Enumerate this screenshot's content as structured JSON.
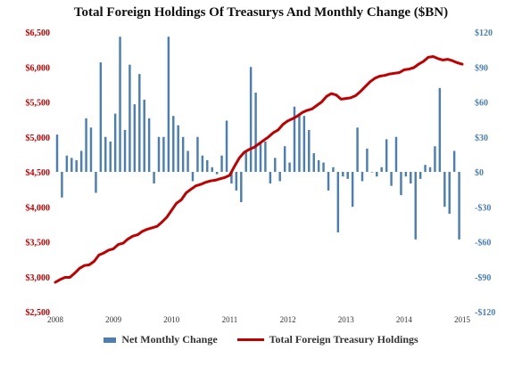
{
  "chart_data": {
    "type": "bar+line",
    "title": "Total Foreign Holdings Of Treasurys And Monthly Change ($BN)",
    "x_range": [
      2008.0,
      2015.0
    ],
    "x_tick_labels": [
      "2008",
      "2009",
      "2010",
      "2011",
      "2012",
      "2013",
      "2014",
      "2015"
    ],
    "y_left": {
      "range": [
        2500,
        6500
      ],
      "ticks": [
        2500,
        3000,
        3500,
        4000,
        4500,
        5000,
        5500,
        6000,
        6500
      ],
      "tick_labels": [
        "$2,500",
        "$3,000",
        "$3,500",
        "$4,000",
        "$4,500",
        "$5,000",
        "$5,500",
        "$6,000",
        "$6,500"
      ],
      "color": "#c00000"
    },
    "y_right": {
      "range": [
        -120,
        120
      ],
      "ticks": [
        -120,
        -90,
        -60,
        -30,
        0,
        30,
        60,
        90,
        120
      ],
      "tick_labels": [
        "-$120",
        "-$90",
        "-$60",
        "-$30",
        "$0",
        "$30",
        "$60",
        "$90",
        "$120"
      ],
      "color": "#4a7eb5"
    },
    "grid": false,
    "legend_position": "bottom",
    "series": [
      {
        "name": "Net Monthly Change",
        "type": "bar",
        "axis": "right",
        "color": "#4a7eb5",
        "x": [
          2008.0,
          2008.083,
          2008.167,
          2008.25,
          2008.333,
          2008.417,
          2008.5,
          2008.583,
          2008.667,
          2008.75,
          2008.833,
          2008.917,
          2009.0,
          2009.083,
          2009.167,
          2009.25,
          2009.333,
          2009.417,
          2009.5,
          2009.583,
          2009.667,
          2009.75,
          2009.833,
          2009.917,
          2010.0,
          2010.083,
          2010.167,
          2010.25,
          2010.333,
          2010.417,
          2010.5,
          2010.583,
          2010.667,
          2010.75,
          2010.833,
          2010.917,
          2011.0,
          2011.083,
          2011.167,
          2011.25,
          2011.333,
          2011.417,
          2011.5,
          2011.583,
          2011.667,
          2011.75,
          2011.833,
          2011.917,
          2012.0,
          2012.083,
          2012.167,
          2012.25,
          2012.333,
          2012.417,
          2012.5,
          2012.583,
          2012.667,
          2012.75,
          2012.833,
          2012.917,
          2013.0,
          2013.083,
          2013.167,
          2013.25,
          2013.333,
          2013.417,
          2013.5,
          2013.583,
          2013.667,
          2013.75,
          2013.833,
          2013.917,
          2014.0,
          2014.083,
          2014.167,
          2014.25,
          2014.333,
          2014.417,
          2014.5,
          2014.583,
          2014.667,
          2014.75,
          2014.833,
          2014.917
        ],
        "values": [
          32,
          -22,
          14,
          12,
          10,
          18,
          46,
          38,
          -18,
          94,
          30,
          26,
          50,
          116,
          36,
          92,
          58,
          84,
          62,
          46,
          -10,
          30,
          30,
          116,
          48,
          40,
          30,
          18,
          -8,
          30,
          14,
          10,
          4,
          -2,
          14,
          44,
          -10,
          -16,
          -26,
          18,
          90,
          68,
          26,
          26,
          -10,
          12,
          -8,
          22,
          8,
          56,
          50,
          48,
          36,
          16,
          10,
          8,
          -16,
          4,
          -52,
          -4,
          -6,
          -30,
          38,
          -8,
          20,
          0,
          -4,
          4,
          28,
          -12,
          30,
          -20,
          -4,
          -10,
          -58,
          -6,
          6,
          4,
          22,
          72,
          -30,
          -36,
          18,
          -58
        ],
        "bar_x_note": "approximate monthly values read from right axis"
      },
      {
        "name": "Total Foreign Treasury Holdings",
        "type": "line",
        "axis": "left",
        "color": "#c00000",
        "x": [
          2008.0,
          2008.083,
          2008.167,
          2008.25,
          2008.333,
          2008.417,
          2008.5,
          2008.583,
          2008.667,
          2008.75,
          2008.833,
          2008.917,
          2009.0,
          2009.083,
          2009.167,
          2009.25,
          2009.333,
          2009.417,
          2009.5,
          2009.583,
          2009.667,
          2009.75,
          2009.833,
          2009.917,
          2010.0,
          2010.083,
          2010.167,
          2010.25,
          2010.333,
          2010.417,
          2010.5,
          2010.583,
          2010.667,
          2010.75,
          2010.833,
          2010.917,
          2011.0,
          2011.083,
          2011.167,
          2011.25,
          2011.333,
          2011.417,
          2011.5,
          2011.583,
          2011.667,
          2011.75,
          2011.833,
          2011.917,
          2012.0,
          2012.083,
          2012.167,
          2012.25,
          2012.333,
          2012.417,
          2012.5,
          2012.583,
          2012.667,
          2012.75,
          2012.833,
          2012.917,
          2013.0,
          2013.083,
          2013.167,
          2013.25,
          2013.333,
          2013.417,
          2013.5,
          2013.583,
          2013.667,
          2013.75,
          2013.833,
          2013.917,
          2014.0,
          2014.083,
          2014.167,
          2014.25,
          2014.333,
          2014.417,
          2014.5,
          2014.583,
          2014.667,
          2014.75,
          2014.833,
          2014.917,
          2015.0
        ],
        "values": [
          2920,
          2960,
          2990,
          2990,
          3050,
          3120,
          3160,
          3170,
          3220,
          3310,
          3340,
          3380,
          3400,
          3460,
          3480,
          3540,
          3580,
          3600,
          3650,
          3680,
          3700,
          3720,
          3780,
          3850,
          3950,
          4050,
          4100,
          4200,
          4250,
          4300,
          4320,
          4350,
          4370,
          4380,
          4400,
          4420,
          4450,
          4580,
          4700,
          4780,
          4820,
          4850,
          4900,
          4950,
          5000,
          5060,
          5100,
          5180,
          5230,
          5260,
          5300,
          5350,
          5380,
          5400,
          5450,
          5500,
          5580,
          5620,
          5600,
          5540,
          5550,
          5560,
          5590,
          5650,
          5720,
          5790,
          5840,
          5870,
          5880,
          5900,
          5910,
          5920,
          5960,
          5970,
          5990,
          6040,
          6080,
          6140,
          6150,
          6120,
          6100,
          6110,
          6090,
          6060,
          6040
        ]
      }
    ]
  }
}
